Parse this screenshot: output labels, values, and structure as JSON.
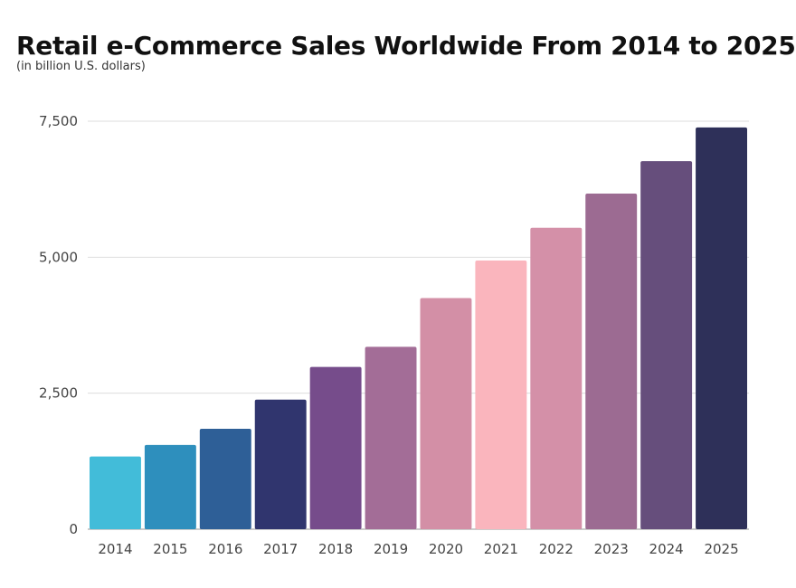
{
  "chart_data": {
    "type": "bar",
    "title": "Retail e-Commerce Sales Worldwide From 2014 to 2025",
    "subtitle": "(in billion U.S. dollars)",
    "xlabel": "",
    "ylabel": "",
    "ylim": [
      0,
      7500
    ],
    "yticks": [
      0,
      2500,
      5000,
      7500
    ],
    "ytick_labels": [
      "0",
      "2,500",
      "5,000",
      "7,500"
    ],
    "grid": true,
    "categories": [
      "2014",
      "2015",
      "2016",
      "2017",
      "2018",
      "2019",
      "2020",
      "2021",
      "2022",
      "2023",
      "2024",
      "2025"
    ],
    "values": [
      1336,
      1548,
      1845,
      2382,
      2982,
      3354,
      4248,
      4938,
      5542,
      6169,
      6767,
      7385
    ],
    "colors": [
      "#42bcd9",
      "#2e8fbd",
      "#2e5f97",
      "#30356e",
      "#764c8b",
      "#a36d97",
      "#d38fa6",
      "#fab5bd",
      "#d490a8",
      "#9c6b92",
      "#664e7c",
      "#2e3059"
    ]
  }
}
